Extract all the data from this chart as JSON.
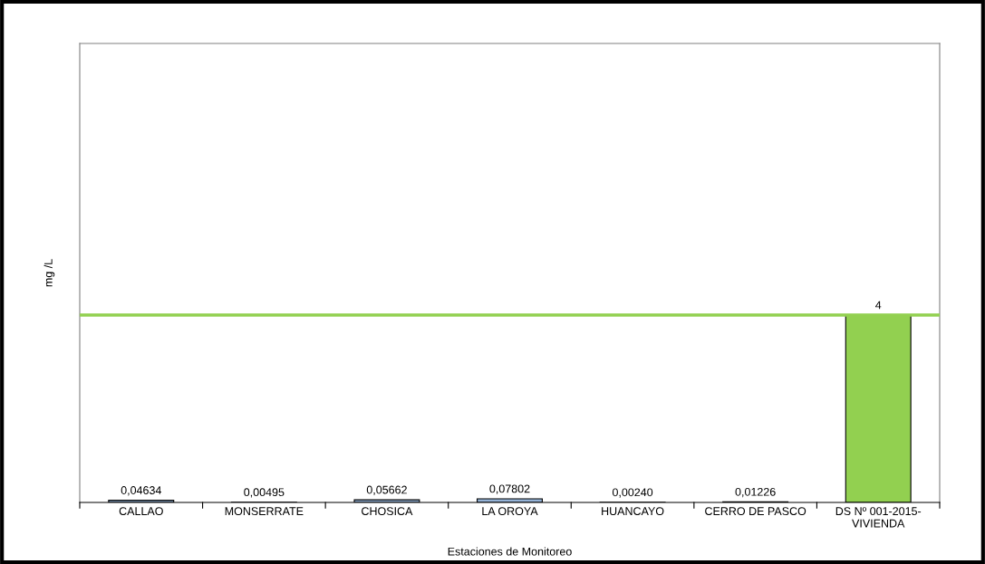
{
  "chart_data": {
    "type": "bar",
    "xlabel": "Estaciones de Monitoreo",
    "ylabel": "mg /L",
    "categories": [
      "CALLAO",
      "MONSERRATE",
      "CHOSICA",
      "LA OROYA",
      "HUANCAYO",
      "CERRO DE PASCO",
      "DS Nº 001-2015-\nVIVIENDA"
    ],
    "values": [
      0.04634,
      0.00495,
      0.05662,
      0.07802,
      0.0024,
      0.01226,
      4
    ],
    "colors": [
      "#95b3d7",
      "#95b3d7",
      "#95b3d7",
      "#95b3d7",
      "#95b3d7",
      "#95b3d7",
      "#92d050"
    ],
    "value_labels": [
      "0,04634",
      "0,00495",
      "0,05662",
      "0,07802",
      "0,00240",
      "0,01226",
      "4"
    ],
    "ylim": [
      0,
      9.8
    ],
    "tick_labels": "x",
    "grid": false,
    "ref_lines": [
      {
        "axis": "y",
        "value": 4,
        "color": "#92d050"
      }
    ]
  }
}
